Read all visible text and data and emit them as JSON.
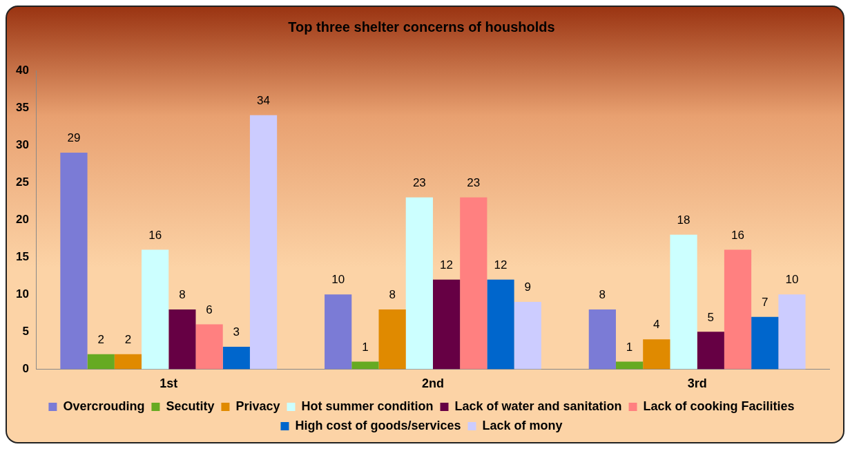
{
  "chart_data": {
    "type": "bar",
    "title": "Top three shelter concerns of housholds",
    "categories": [
      "1st",
      "2nd",
      "3rd"
    ],
    "series": [
      {
        "name": "Overcrouding",
        "color": "#7b7bd6",
        "values": [
          29,
          10,
          8
        ]
      },
      {
        "name": "Secutity",
        "color": "#66aa22",
        "values": [
          2,
          1,
          1
        ]
      },
      {
        "name": "Privacy",
        "color": "#e08a00",
        "values": [
          2,
          8,
          4
        ]
      },
      {
        "name": "Hot summer condition",
        "color": "#ccffff",
        "values": [
          16,
          23,
          18
        ]
      },
      {
        "name": "Lack of water and sanitation",
        "color": "#660044",
        "values": [
          8,
          12,
          5
        ]
      },
      {
        "name": "Lack of cooking Facilities",
        "color": "#ff8080",
        "values": [
          6,
          23,
          16
        ]
      },
      {
        "name": "High cost of goods/services",
        "color": "#0066cc",
        "values": [
          3,
          12,
          7
        ]
      },
      {
        "name": "Lack of mony",
        "color": "#ccccff",
        "values": [
          34,
          9,
          10
        ]
      }
    ],
    "ylim": [
      0,
      40
    ],
    "yticks": [
      0,
      5,
      10,
      15,
      20,
      25,
      30,
      35,
      40
    ],
    "grid": false,
    "legend": "bottom",
    "data_labels": true
  }
}
